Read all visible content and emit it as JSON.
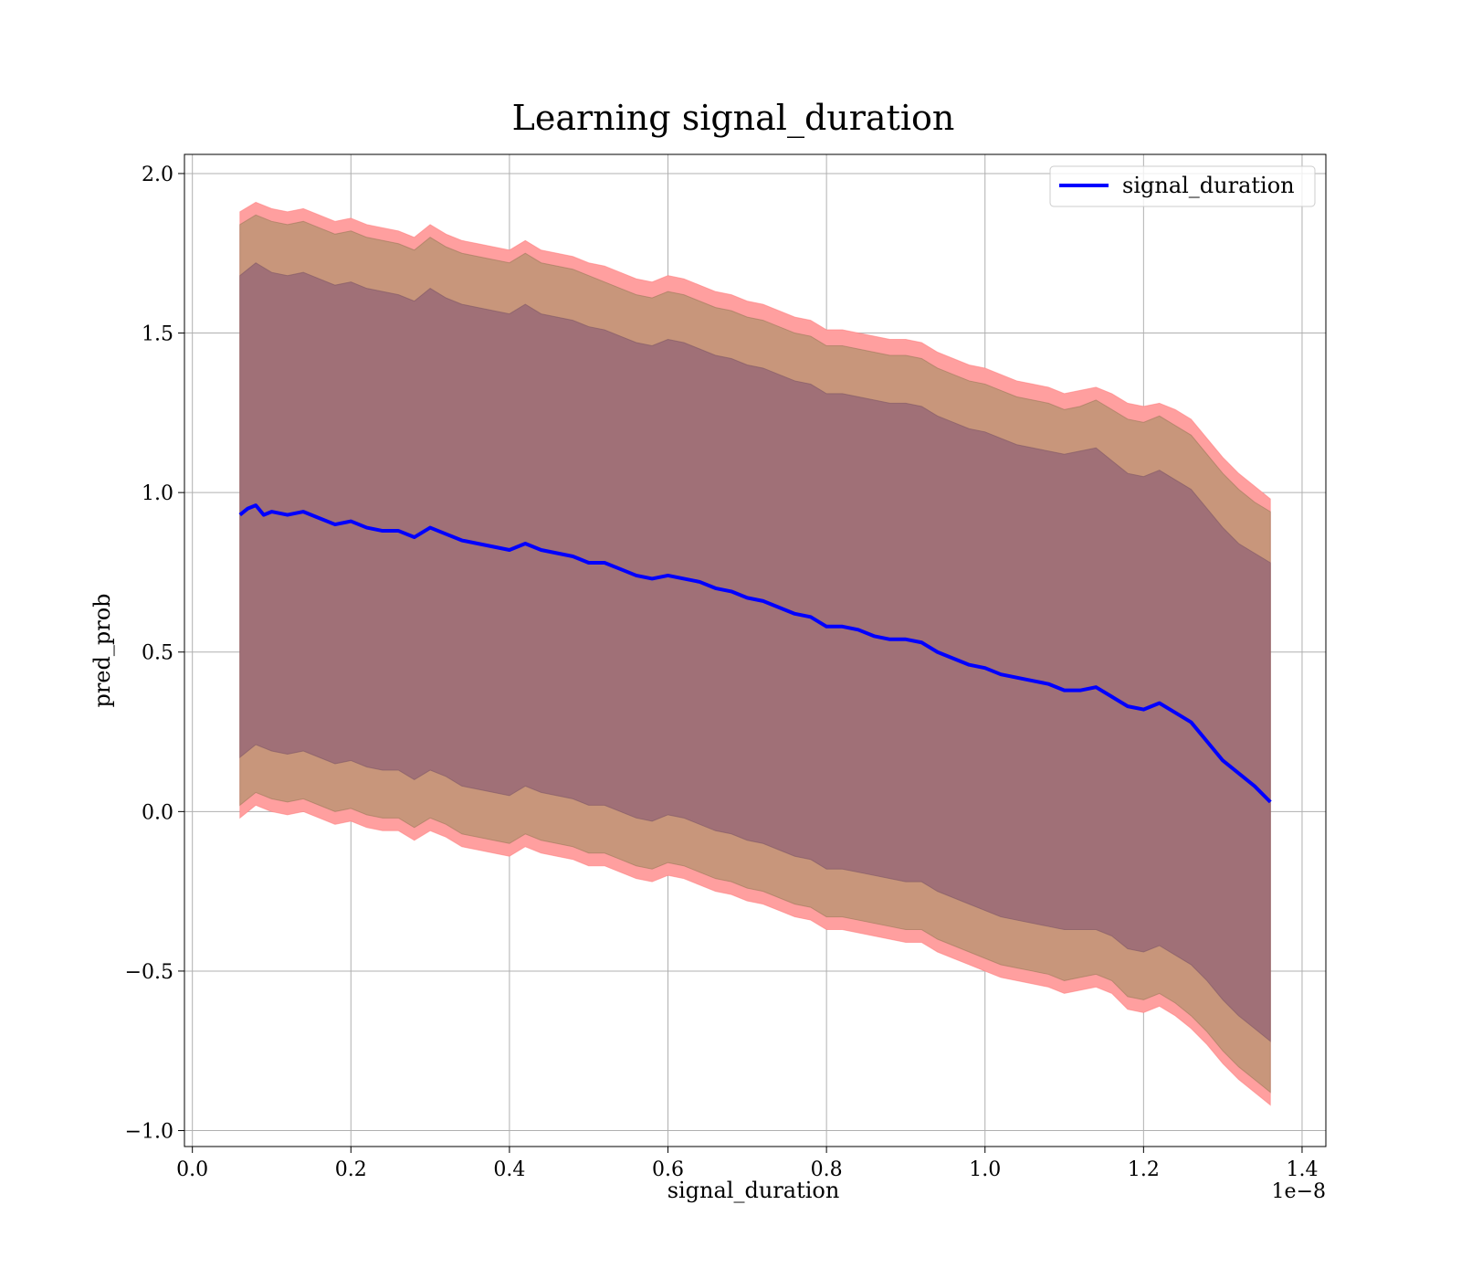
{
  "chart_data": {
    "type": "area",
    "title": "Learning signal_duration",
    "xlabel": "signal_duration",
    "ylabel": "pred_prob",
    "x_offset_text": "1e−8",
    "xlim": [
      -0.01,
      1.43
    ],
    "ylim": [
      -1.05,
      2.06
    ],
    "xticks": [
      0.0,
      0.2,
      0.4,
      0.6,
      0.8,
      1.0,
      1.2,
      1.4
    ],
    "xtick_labels": [
      "0.0",
      "0.2",
      "0.4",
      "0.6",
      "0.8",
      "1.0",
      "1.2",
      "1.4"
    ],
    "yticks": [
      -1.0,
      -0.5,
      0.0,
      0.5,
      1.0,
      1.5,
      2.0
    ],
    "ytick_labels": [
      "−1.0",
      "−0.5",
      "0.0",
      "0.5",
      "1.0",
      "1.5",
      "2.0"
    ],
    "grid": true,
    "legend_position": "top-right",
    "colors": {
      "mean_line": "#0000ff",
      "outer_band": "#ff9f9f",
      "middle_band": "#c8967b",
      "inner_band": "#a07077"
    },
    "series": [
      {
        "name": "signal_duration",
        "role": "mean",
        "x": [
          0.06,
          0.07,
          0.08,
          0.09,
          0.1,
          0.12,
          0.14,
          0.16,
          0.18,
          0.2,
          0.22,
          0.24,
          0.26,
          0.28,
          0.3,
          0.32,
          0.34,
          0.36,
          0.38,
          0.4,
          0.42,
          0.44,
          0.46,
          0.48,
          0.5,
          0.52,
          0.54,
          0.56,
          0.58,
          0.6,
          0.62,
          0.64,
          0.66,
          0.68,
          0.7,
          0.72,
          0.74,
          0.76,
          0.78,
          0.8,
          0.82,
          0.84,
          0.86,
          0.88,
          0.9,
          0.92,
          0.94,
          0.96,
          0.98,
          1.0,
          1.02,
          1.04,
          1.06,
          1.08,
          1.1,
          1.12,
          1.14,
          1.16,
          1.18,
          1.2,
          1.22,
          1.24,
          1.26,
          1.28,
          1.3,
          1.32,
          1.34,
          1.36
        ],
        "y": [
          0.93,
          0.95,
          0.96,
          0.93,
          0.94,
          0.93,
          0.94,
          0.92,
          0.9,
          0.91,
          0.89,
          0.88,
          0.88,
          0.86,
          0.89,
          0.87,
          0.85,
          0.84,
          0.83,
          0.82,
          0.84,
          0.82,
          0.81,
          0.8,
          0.78,
          0.78,
          0.76,
          0.74,
          0.73,
          0.74,
          0.73,
          0.72,
          0.7,
          0.69,
          0.67,
          0.66,
          0.64,
          0.62,
          0.61,
          0.58,
          0.58,
          0.57,
          0.55,
          0.54,
          0.54,
          0.53,
          0.5,
          0.48,
          0.46,
          0.45,
          0.43,
          0.42,
          0.41,
          0.4,
          0.38,
          0.38,
          0.39,
          0.36,
          0.33,
          0.32,
          0.34,
          0.31,
          0.28,
          0.22,
          0.16,
          0.12,
          0.08,
          0.03
        ]
      },
      {
        "role": "outer_band",
        "x": [
          0.06,
          0.08,
          0.1,
          0.12,
          0.14,
          0.16,
          0.18,
          0.2,
          0.22,
          0.24,
          0.26,
          0.28,
          0.3,
          0.32,
          0.34,
          0.36,
          0.38,
          0.4,
          0.42,
          0.44,
          0.46,
          0.48,
          0.5,
          0.52,
          0.54,
          0.56,
          0.58,
          0.6,
          0.62,
          0.64,
          0.66,
          0.68,
          0.7,
          0.72,
          0.74,
          0.76,
          0.78,
          0.8,
          0.82,
          0.84,
          0.86,
          0.88,
          0.9,
          0.92,
          0.94,
          0.96,
          0.98,
          1.0,
          1.02,
          1.04,
          1.06,
          1.08,
          1.1,
          1.12,
          1.14,
          1.16,
          1.18,
          1.2,
          1.22,
          1.24,
          1.26,
          1.28,
          1.3,
          1.32,
          1.34,
          1.36
        ],
        "upper": [
          1.88,
          1.91,
          1.89,
          1.88,
          1.89,
          1.87,
          1.85,
          1.86,
          1.84,
          1.83,
          1.82,
          1.8,
          1.84,
          1.81,
          1.79,
          1.78,
          1.77,
          1.76,
          1.79,
          1.76,
          1.75,
          1.74,
          1.72,
          1.71,
          1.69,
          1.67,
          1.66,
          1.68,
          1.67,
          1.65,
          1.63,
          1.62,
          1.6,
          1.59,
          1.57,
          1.55,
          1.54,
          1.51,
          1.51,
          1.5,
          1.49,
          1.48,
          1.48,
          1.47,
          1.44,
          1.42,
          1.4,
          1.39,
          1.37,
          1.35,
          1.34,
          1.33,
          1.31,
          1.32,
          1.33,
          1.31,
          1.28,
          1.27,
          1.28,
          1.26,
          1.23,
          1.17,
          1.11,
          1.06,
          1.02,
          0.98
        ],
        "lower": [
          -0.02,
          0.02,
          0.0,
          -0.01,
          0.0,
          -0.02,
          -0.04,
          -0.03,
          -0.05,
          -0.06,
          -0.06,
          -0.09,
          -0.06,
          -0.08,
          -0.11,
          -0.12,
          -0.13,
          -0.14,
          -0.11,
          -0.13,
          -0.14,
          -0.15,
          -0.17,
          -0.17,
          -0.19,
          -0.21,
          -0.22,
          -0.2,
          -0.21,
          -0.23,
          -0.25,
          -0.26,
          -0.28,
          -0.29,
          -0.31,
          -0.33,
          -0.34,
          -0.37,
          -0.37,
          -0.38,
          -0.39,
          -0.4,
          -0.41,
          -0.41,
          -0.44,
          -0.46,
          -0.48,
          -0.5,
          -0.52,
          -0.53,
          -0.54,
          -0.55,
          -0.57,
          -0.56,
          -0.55,
          -0.57,
          -0.62,
          -0.63,
          -0.61,
          -0.64,
          -0.68,
          -0.73,
          -0.79,
          -0.84,
          -0.88,
          -0.92
        ]
      },
      {
        "role": "middle_band",
        "x": [
          0.06,
          0.08,
          0.1,
          0.12,
          0.14,
          0.16,
          0.18,
          0.2,
          0.22,
          0.24,
          0.26,
          0.28,
          0.3,
          0.32,
          0.34,
          0.36,
          0.38,
          0.4,
          0.42,
          0.44,
          0.46,
          0.48,
          0.5,
          0.52,
          0.54,
          0.56,
          0.58,
          0.6,
          0.62,
          0.64,
          0.66,
          0.68,
          0.7,
          0.72,
          0.74,
          0.76,
          0.78,
          0.8,
          0.82,
          0.84,
          0.86,
          0.88,
          0.9,
          0.92,
          0.94,
          0.96,
          0.98,
          1.0,
          1.02,
          1.04,
          1.06,
          1.08,
          1.1,
          1.12,
          1.14,
          1.16,
          1.18,
          1.2,
          1.22,
          1.24,
          1.26,
          1.28,
          1.3,
          1.32,
          1.34,
          1.36
        ],
        "upper": [
          1.84,
          1.87,
          1.85,
          1.84,
          1.85,
          1.83,
          1.81,
          1.82,
          1.8,
          1.79,
          1.78,
          1.76,
          1.8,
          1.77,
          1.75,
          1.74,
          1.73,
          1.72,
          1.75,
          1.72,
          1.71,
          1.7,
          1.68,
          1.66,
          1.64,
          1.62,
          1.61,
          1.63,
          1.62,
          1.6,
          1.58,
          1.57,
          1.55,
          1.54,
          1.52,
          1.5,
          1.49,
          1.46,
          1.46,
          1.45,
          1.44,
          1.43,
          1.43,
          1.42,
          1.39,
          1.37,
          1.35,
          1.34,
          1.32,
          1.3,
          1.29,
          1.28,
          1.26,
          1.27,
          1.29,
          1.26,
          1.23,
          1.22,
          1.24,
          1.21,
          1.18,
          1.12,
          1.06,
          1.01,
          0.97,
          0.94
        ],
        "lower": [
          0.02,
          0.06,
          0.04,
          0.03,
          0.04,
          0.02,
          0.0,
          0.01,
          -0.01,
          -0.02,
          -0.02,
          -0.05,
          -0.02,
          -0.04,
          -0.07,
          -0.08,
          -0.09,
          -0.1,
          -0.07,
          -0.09,
          -0.1,
          -0.11,
          -0.13,
          -0.13,
          -0.15,
          -0.17,
          -0.18,
          -0.16,
          -0.17,
          -0.19,
          -0.21,
          -0.22,
          -0.24,
          -0.25,
          -0.27,
          -0.29,
          -0.3,
          -0.33,
          -0.33,
          -0.34,
          -0.35,
          -0.36,
          -0.37,
          -0.37,
          -0.4,
          -0.42,
          -0.44,
          -0.46,
          -0.48,
          -0.49,
          -0.5,
          -0.51,
          -0.53,
          -0.52,
          -0.51,
          -0.53,
          -0.58,
          -0.59,
          -0.57,
          -0.6,
          -0.64,
          -0.69,
          -0.75,
          -0.8,
          -0.84,
          -0.88
        ]
      },
      {
        "role": "inner_band",
        "x": [
          0.06,
          0.08,
          0.1,
          0.12,
          0.14,
          0.16,
          0.18,
          0.2,
          0.22,
          0.24,
          0.26,
          0.28,
          0.3,
          0.32,
          0.34,
          0.36,
          0.38,
          0.4,
          0.42,
          0.44,
          0.46,
          0.48,
          0.5,
          0.52,
          0.54,
          0.56,
          0.58,
          0.6,
          0.62,
          0.64,
          0.66,
          0.68,
          0.7,
          0.72,
          0.74,
          0.76,
          0.78,
          0.8,
          0.82,
          0.84,
          0.86,
          0.88,
          0.9,
          0.92,
          0.94,
          0.96,
          0.98,
          1.0,
          1.02,
          1.04,
          1.06,
          1.08,
          1.1,
          1.12,
          1.14,
          1.16,
          1.18,
          1.2,
          1.22,
          1.24,
          1.26,
          1.28,
          1.3,
          1.32,
          1.34,
          1.36
        ],
        "upper": [
          1.68,
          1.72,
          1.69,
          1.68,
          1.69,
          1.67,
          1.65,
          1.66,
          1.64,
          1.63,
          1.62,
          1.6,
          1.64,
          1.61,
          1.59,
          1.58,
          1.57,
          1.56,
          1.59,
          1.56,
          1.55,
          1.54,
          1.52,
          1.51,
          1.49,
          1.47,
          1.46,
          1.48,
          1.47,
          1.45,
          1.43,
          1.42,
          1.4,
          1.39,
          1.37,
          1.35,
          1.34,
          1.31,
          1.31,
          1.3,
          1.29,
          1.28,
          1.28,
          1.27,
          1.24,
          1.22,
          1.2,
          1.19,
          1.17,
          1.15,
          1.14,
          1.13,
          1.12,
          1.13,
          1.14,
          1.1,
          1.06,
          1.05,
          1.07,
          1.04,
          1.01,
          0.95,
          0.89,
          0.84,
          0.81,
          0.78
        ],
        "lower": [
          0.17,
          0.21,
          0.19,
          0.18,
          0.19,
          0.17,
          0.15,
          0.16,
          0.14,
          0.13,
          0.13,
          0.1,
          0.13,
          0.11,
          0.08,
          0.07,
          0.06,
          0.05,
          0.08,
          0.06,
          0.05,
          0.04,
          0.02,
          0.02,
          0.0,
          -0.02,
          -0.03,
          -0.01,
          -0.02,
          -0.04,
          -0.06,
          -0.07,
          -0.09,
          -0.1,
          -0.12,
          -0.14,
          -0.15,
          -0.18,
          -0.18,
          -0.19,
          -0.2,
          -0.21,
          -0.22,
          -0.22,
          -0.25,
          -0.27,
          -0.29,
          -0.31,
          -0.33,
          -0.34,
          -0.35,
          -0.36,
          -0.37,
          -0.37,
          -0.37,
          -0.39,
          -0.43,
          -0.44,
          -0.42,
          -0.45,
          -0.48,
          -0.53,
          -0.59,
          -0.64,
          -0.68,
          -0.72
        ]
      }
    ]
  }
}
